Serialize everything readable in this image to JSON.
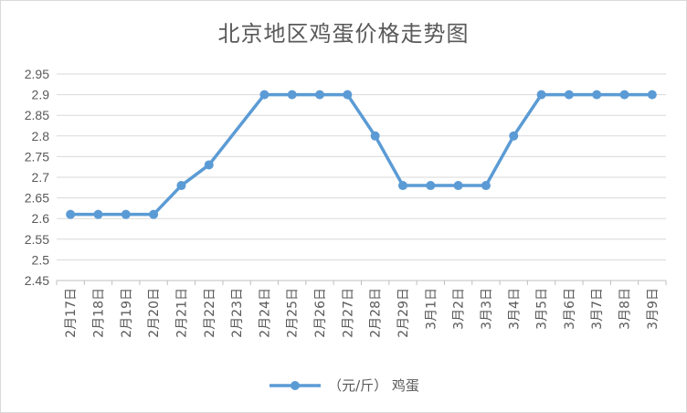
{
  "chart_data": {
    "type": "line",
    "title": "北京地区鸡蛋价格走势图",
    "xlabel": "",
    "ylabel": "",
    "categories": [
      "2月17日",
      "2月18日",
      "2月19日",
      "2月20日",
      "2月21日",
      "2月22日",
      "2月23日",
      "2月24日",
      "2月25日",
      "2月26日",
      "2月27日",
      "2月28日",
      "2月29日",
      "3月1日",
      "3月2日",
      "3月3日",
      "3月4日",
      "3月5日",
      "3月6日",
      "3月7日",
      "3月8日",
      "3月9日"
    ],
    "series": [
      {
        "name": "（元/斤） 鸡蛋",
        "values": [
          2.61,
          2.61,
          2.61,
          2.61,
          2.68,
          2.73,
          null,
          2.9,
          2.9,
          2.9,
          2.9,
          2.8,
          2.68,
          2.68,
          2.68,
          2.68,
          2.8,
          2.9,
          2.9,
          2.9,
          2.9,
          2.9
        ],
        "color": "#5b9bd5"
      }
    ],
    "ylim": [
      2.45,
      2.95
    ],
    "yticks": [
      "2.45",
      "2.5",
      "2.55",
      "2.6",
      "2.65",
      "2.7",
      "2.75",
      "2.8",
      "2.85",
      "2.9",
      "2.95"
    ],
    "grid": true,
    "legend": "bottom"
  }
}
